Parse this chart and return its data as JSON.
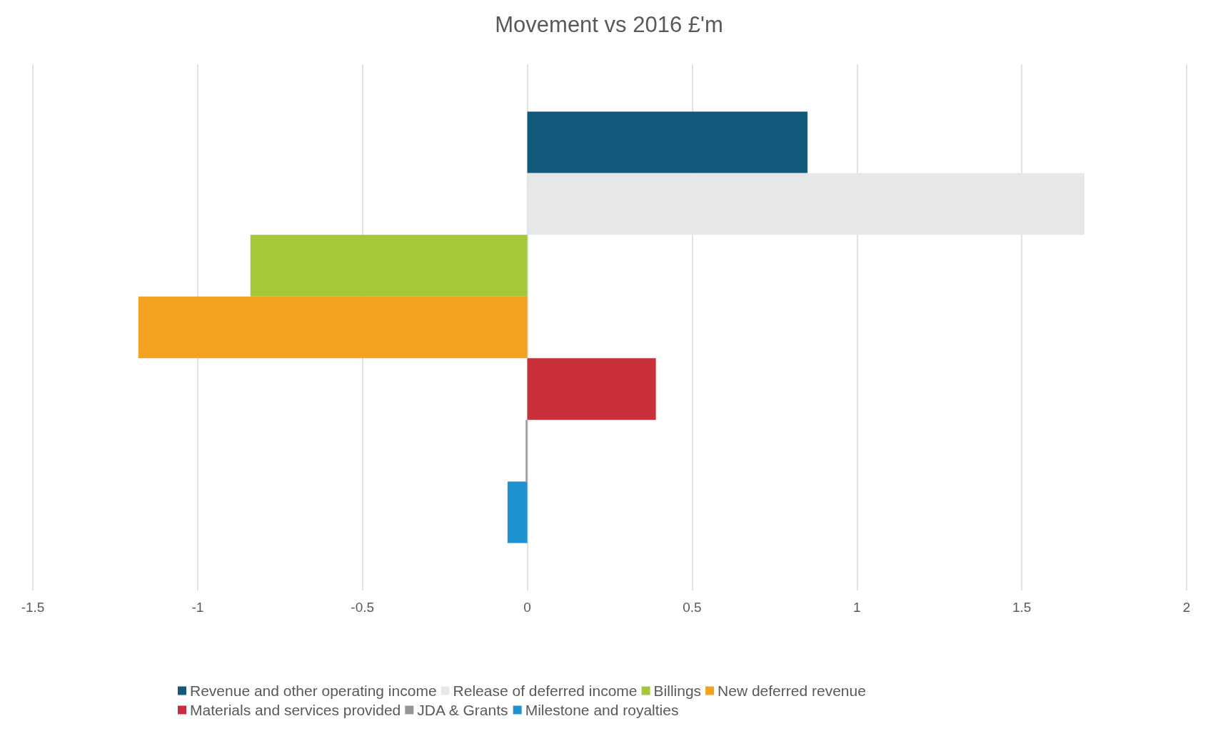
{
  "chart_data": {
    "type": "bar",
    "orientation": "horizontal",
    "title": "Movement vs 2016 £'m",
    "categories": [
      null
    ],
    "series": [
      {
        "name": "Revenue and other operating income",
        "color": "#115a7c",
        "values": [
          0.85
        ]
      },
      {
        "name": "Release of deferred income",
        "color": "#e6e7e8",
        "values": [
          1.69
        ]
      },
      {
        "name": "Billings",
        "color": "#a3c83a",
        "values": [
          -0.84
        ]
      },
      {
        "name": "New deferred revenue",
        "color": "#f3a120",
        "values": [
          -1.18
        ]
      },
      {
        "name": "Materials and services provided",
        "color": "#c82f38",
        "values": [
          0.39
        ]
      },
      {
        "name": "JDA & Grants",
        "color": "#939598",
        "values": [
          -0.005
        ]
      },
      {
        "name": "Milestone and royalties",
        "color": "#1e93d0",
        "values": [
          -0.06
        ]
      }
    ],
    "xlim": [
      -1.5,
      2
    ],
    "xticks": [
      -1.5,
      -1,
      -0.5,
      0,
      0.5,
      1,
      1.5,
      2
    ],
    "grid": "x",
    "legend": "bottom"
  }
}
